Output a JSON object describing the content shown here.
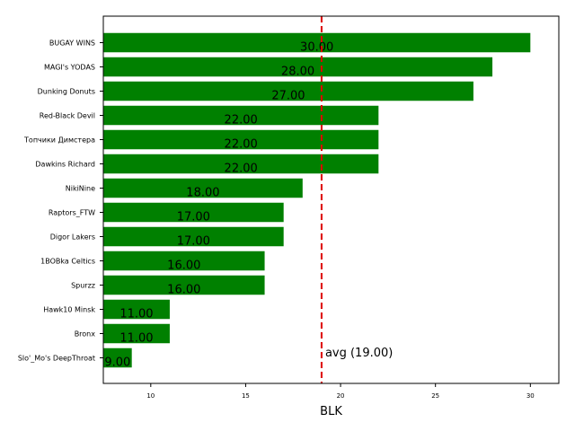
{
  "chart_data": {
    "type": "bar",
    "orientation": "horizontal",
    "title": "",
    "xlabel": "BLK",
    "ylabel": "",
    "xlim": [
      7.5,
      31.5
    ],
    "xticks": [
      10,
      15,
      20,
      25,
      30
    ],
    "grid": false,
    "bar_color": "#008000",
    "categories": [
      "BUGAY WINS",
      "MAGI's YODAS",
      "Dunking Donuts",
      "Red-Black Devil",
      "Топчики Димстера",
      "Dawkins Richard",
      "NikiNine",
      "Raptors_FTW",
      "Digor Lakers",
      "1BOBka Celtics",
      "Spurzz",
      "Hawk10 Minsk",
      "Bronx",
      "Slo'_Mo's DeepThroat"
    ],
    "values": [
      30,
      28,
      27,
      22,
      22,
      22,
      18,
      17,
      17,
      16,
      16,
      11,
      11,
      9
    ],
    "value_labels": [
      "30.00",
      "28.00",
      "27.00",
      "22.00",
      "22.00",
      "22.00",
      "18.00",
      "17.00",
      "17.00",
      "16.00",
      "16.00",
      "11.00",
      "11.00",
      "9.00"
    ],
    "average": {
      "value": 19.0,
      "label": "avg (19.00)",
      "color": "#dd0000",
      "style": "dashed"
    }
  }
}
